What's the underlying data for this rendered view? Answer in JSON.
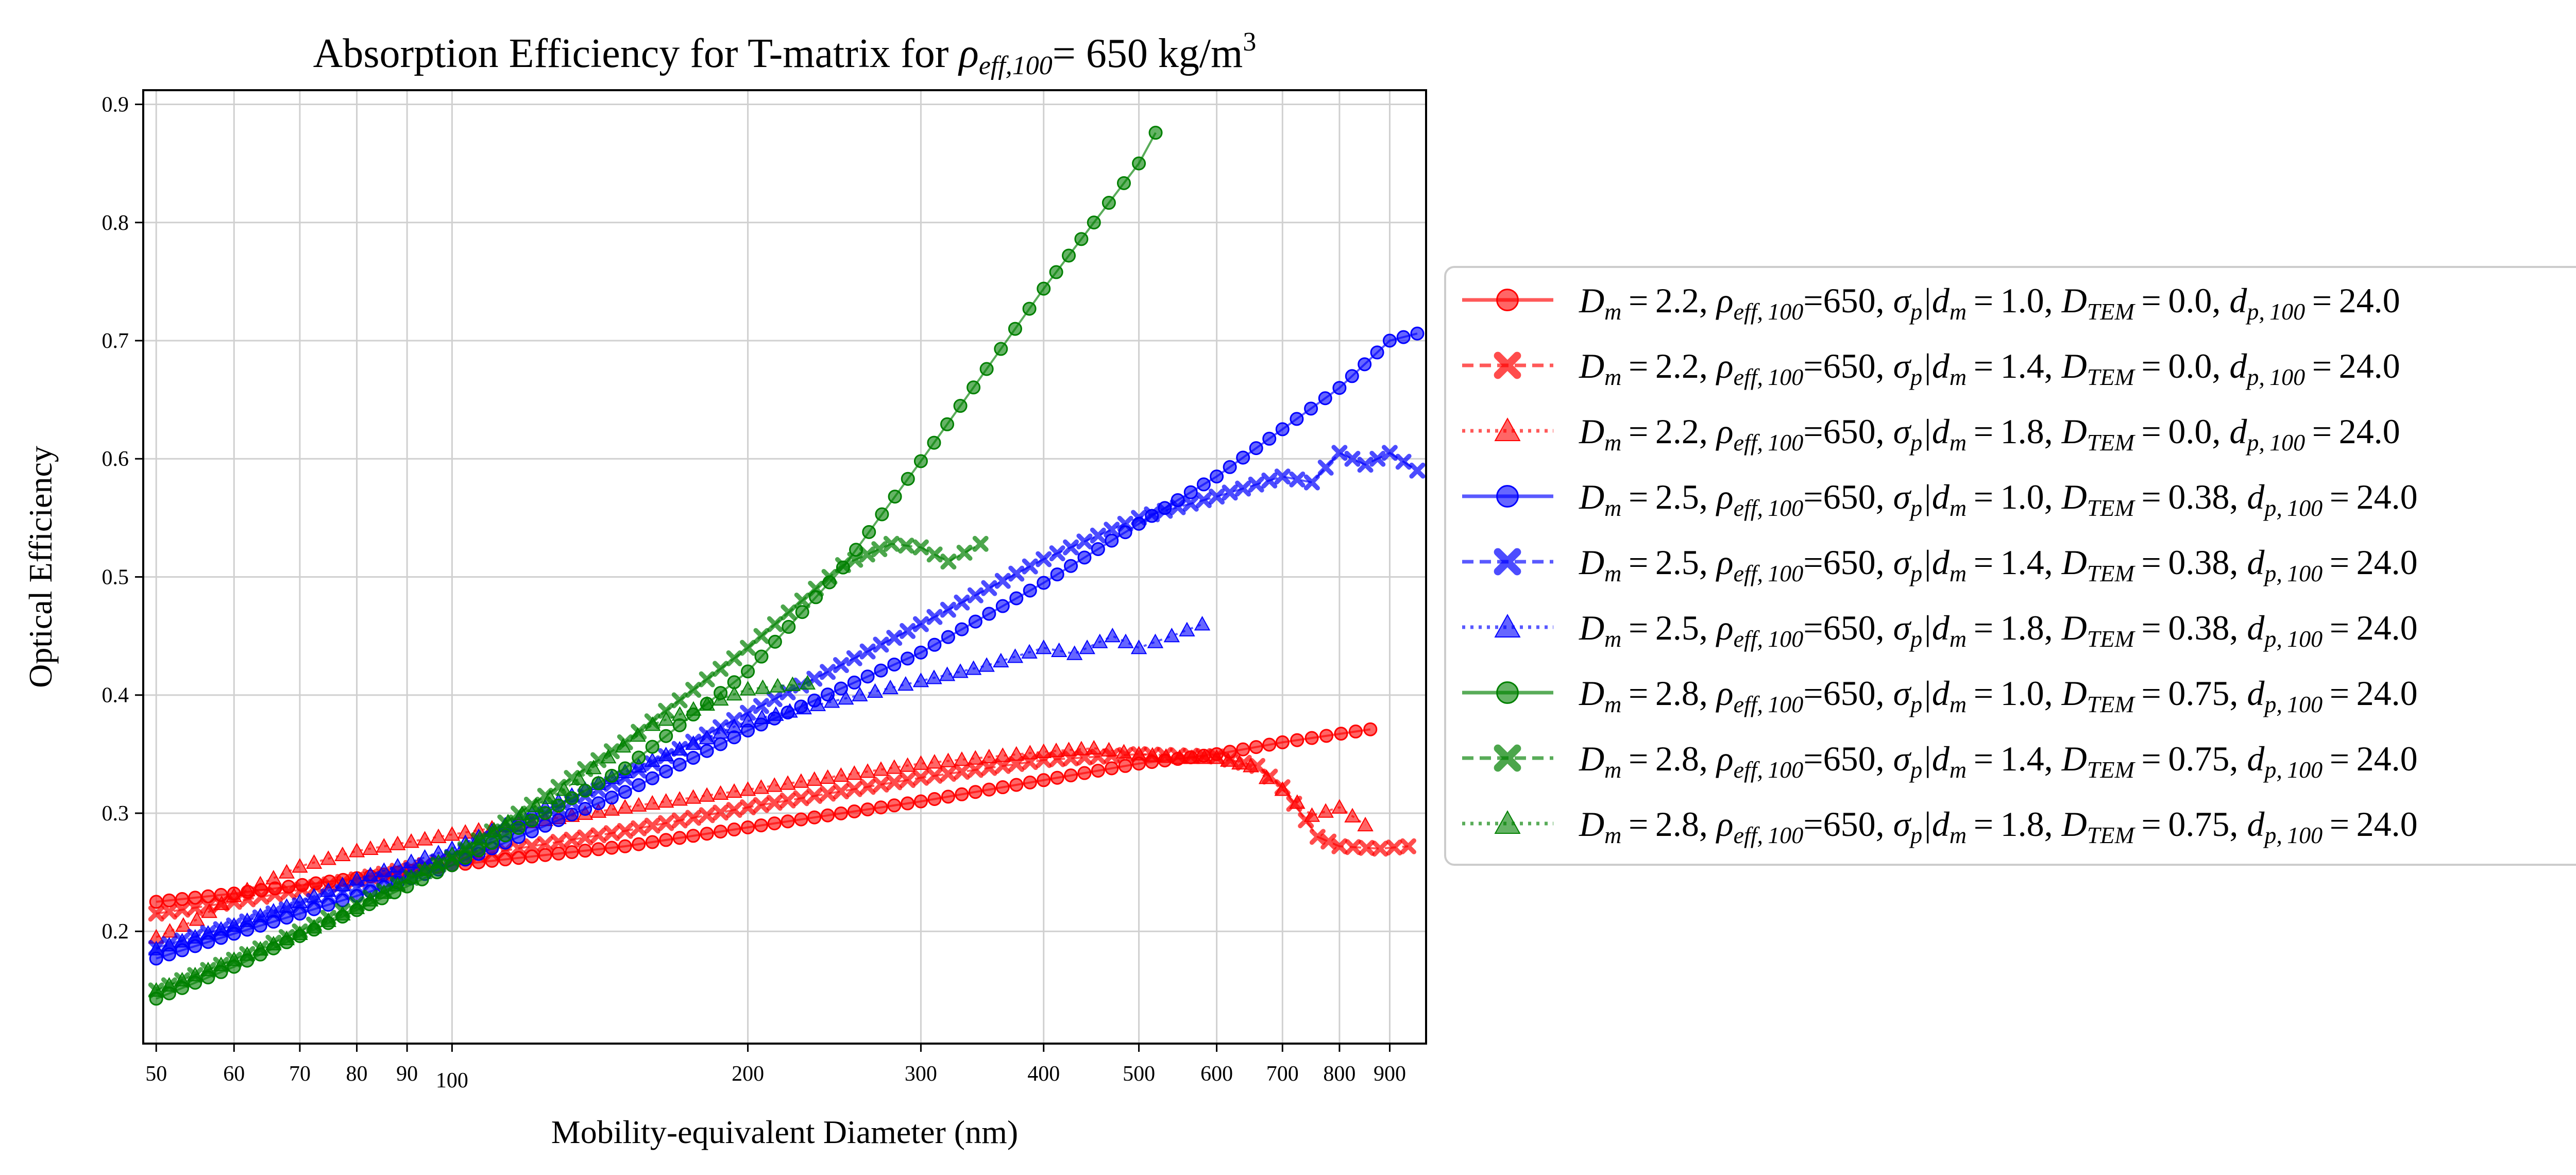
{
  "chart_data": {
    "type": "line",
    "title": "Absorption Efficiency for T-matrix for ρeff,100= 650 kg/m3",
    "title_parts": {
      "pre": "Absorption Efficiency for T-matrix for ",
      "rho": "ρ",
      "rho_sub": "eff,100",
      "post": "= 650 kg/m",
      "sup": "3"
    },
    "xlabel": "Mobility-equivalent Diameter (nm)",
    "ylabel": "Optical Efficiency",
    "x_scale": "log",
    "xlim": [
      48.5,
      980
    ],
    "ylim": [
      0.105,
      0.912
    ],
    "x_ticks": [
      50,
      60,
      70,
      80,
      90,
      100,
      200,
      300,
      400,
      500,
      600,
      700,
      800,
      900
    ],
    "x_tick_labels": [
      "50",
      "60",
      "70",
      "80",
      "90",
      "100",
      "200",
      "300",
      "400",
      "500",
      "600",
      "700",
      "800",
      "900"
    ],
    "y_ticks": [
      0.2,
      0.3,
      0.4,
      0.5,
      0.6,
      0.7,
      0.8,
      0.9
    ],
    "y_tick_labels": [
      "0.2",
      "0.3",
      "0.4",
      "0.5",
      "0.6",
      "0.7",
      "0.8",
      "0.9"
    ],
    "grid": true,
    "legend_position": "right, outside plot",
    "colors": {
      "red": "#ff0000",
      "blue": "#0000ff",
      "green": "#008000"
    },
    "series": [
      {
        "name": "Dm=2.2, ρeff,100=650, σp|dm=1.0, DTEM=0.0, dp,100=24.0",
        "color": "#ff0000",
        "marker": "circle",
        "dash": "solid",
        "legend": {
          "Dm": "2.2",
          "rho": "650",
          "sigma": "1.0",
          "DTEM": "0.0",
          "dp": "24.0"
        },
        "x": [
          50,
          60,
          80,
          100,
          150,
          200,
          300,
          400,
          500,
          600,
          700,
          860
        ],
        "y": [
          0.225,
          0.232,
          0.245,
          0.256,
          0.272,
          0.288,
          0.31,
          0.328,
          0.342,
          0.35,
          0.36,
          0.371
        ]
      },
      {
        "name": "Dm=2.2, ρeff,100=650, σp|dm=1.4, DTEM=0.0, dp,100=24.0",
        "color": "#ff0000",
        "marker": "x",
        "dash": "dashed",
        "legend": {
          "Dm": "2.2",
          "rho": "650",
          "sigma": "1.4",
          "DTEM": "0.0",
          "dp": "24.0"
        },
        "x": [
          50,
          60,
          80,
          100,
          150,
          200,
          300,
          400,
          500,
          600,
          660,
          700,
          760,
          800,
          880,
          940
        ],
        "y": [
          0.215,
          0.225,
          0.244,
          0.261,
          0.285,
          0.305,
          0.33,
          0.345,
          0.35,
          0.348,
          0.34,
          0.322,
          0.28,
          0.272,
          0.27,
          0.272
        ]
      },
      {
        "name": "Dm=2.2, ρeff,100=650, σp|dm=1.8, DTEM=0.0, dp,100=24.0",
        "color": "#ff0000",
        "marker": "triangle",
        "dash": "dotted",
        "legend": {
          "Dm": "2.2",
          "rho": "650",
          "sigma": "1.8",
          "DTEM": "0.0",
          "dp": "24.0"
        },
        "x": [
          50,
          55,
          60,
          70,
          80,
          100,
          150,
          200,
          300,
          400,
          450,
          500,
          550,
          600,
          650,
          700,
          750,
          800,
          850
        ],
        "y": [
          0.195,
          0.21,
          0.23,
          0.255,
          0.268,
          0.282,
          0.305,
          0.32,
          0.342,
          0.352,
          0.355,
          0.35,
          0.347,
          0.347,
          0.34,
          0.32,
          0.298,
          0.305,
          0.29
        ]
      },
      {
        "name": "Dm=2.5, ρeff,100=650, σp|dm=1.0, DTEM=0.38, dp,100=24.0",
        "color": "#0000ff",
        "marker": "circle",
        "dash": "solid",
        "legend": {
          "Dm": "2.5",
          "rho": "650",
          "sigma": "1.0",
          "DTEM": "0.38",
          "dp": "24.0"
        },
        "x": [
          50,
          60,
          70,
          80,
          100,
          150,
          200,
          300,
          400,
          500,
          600,
          700,
          800,
          900,
          960
        ],
        "y": [
          0.177,
          0.198,
          0.215,
          0.23,
          0.256,
          0.318,
          0.37,
          0.436,
          0.495,
          0.545,
          0.585,
          0.625,
          0.66,
          0.7,
          0.706
        ]
      },
      {
        "name": "Dm=2.5, ρeff,100=650, σp|dm=1.4, DTEM=0.38, dp,100=24.0",
        "color": "#0000ff",
        "marker": "x",
        "dash": "dashed",
        "legend": {
          "Dm": "2.5",
          "rho": "650",
          "sigma": "1.4",
          "DTEM": "0.38",
          "dp": "24.0"
        },
        "x": [
          50,
          60,
          70,
          80,
          100,
          150,
          200,
          300,
          400,
          500,
          600,
          700,
          750,
          800,
          850,
          900,
          960
        ],
        "y": [
          0.186,
          0.205,
          0.222,
          0.237,
          0.263,
          0.33,
          0.385,
          0.46,
          0.515,
          0.55,
          0.568,
          0.585,
          0.58,
          0.605,
          0.595,
          0.605,
          0.59
        ]
      },
      {
        "name": "Dm=2.5, ρeff,100=650, σp|dm=1.8, DTEM=0.38, dp,100=24.0",
        "color": "#0000ff",
        "marker": "triangle",
        "dash": "dotted",
        "legend": {
          "Dm": "2.5",
          "rho": "650",
          "sigma": "1.8",
          "DTEM": "0.38",
          "dp": "24.0"
        },
        "x": [
          50,
          60,
          70,
          80,
          100,
          150,
          200,
          260,
          300,
          350,
          400,
          430,
          470,
          500,
          540,
          580
        ],
        "y": [
          0.185,
          0.205,
          0.225,
          0.244,
          0.27,
          0.335,
          0.378,
          0.4,
          0.412,
          0.425,
          0.44,
          0.435,
          0.45,
          0.44,
          0.45,
          0.46
        ]
      },
      {
        "name": "Dm=2.8, ρeff,100=650, σp|dm=1.0, DTEM=0.75, dp,100=24.0",
        "color": "#008000",
        "marker": "circle",
        "dash": "solid",
        "legend": {
          "Dm": "2.8",
          "rho": "650",
          "sigma": "1.0",
          "DTEM": "0.75",
          "dp": "24.0"
        },
        "x": [
          50,
          60,
          70,
          80,
          90,
          100,
          150,
          200,
          250,
          300,
          350,
          400,
          450,
          500,
          520
        ],
        "y": [
          0.143,
          0.17,
          0.196,
          0.218,
          0.238,
          0.256,
          0.338,
          0.42,
          0.508,
          0.598,
          0.676,
          0.744,
          0.8,
          0.85,
          0.876
        ]
      },
      {
        "name": "Dm=2.8, ρeff,100=650, σp|dm=1.4, DTEM=0.75, dp,100=24.0",
        "color": "#008000",
        "marker": "x",
        "dash": "dashed",
        "legend": {
          "Dm": "2.8",
          "rho": "650",
          "sigma": "1.4",
          "DTEM": "0.75",
          "dp": "24.0"
        },
        "x": [
          50,
          60,
          70,
          80,
          100,
          150,
          200,
          250,
          280,
          300,
          320,
          345
        ],
        "y": [
          0.15,
          0.176,
          0.2,
          0.223,
          0.262,
          0.36,
          0.44,
          0.51,
          0.528,
          0.525,
          0.513,
          0.528
        ]
      },
      {
        "name": "Dm=2.8, ρeff,100=650, σp|dm=1.8, DTEM=0.75, dp,100=24.0",
        "color": "#008000",
        "marker": "triangle",
        "dash": "dotted",
        "legend": {
          "Dm": "2.8",
          "rho": "650",
          "sigma": "1.8",
          "DTEM": "0.75",
          "dp": "24.0"
        },
        "x": [
          50,
          60,
          70,
          80,
          100,
          130,
          160,
          200,
          230
        ],
        "y": [
          0.15,
          0.176,
          0.198,
          0.22,
          0.265,
          0.32,
          0.375,
          0.405,
          0.41
        ]
      }
    ]
  }
}
